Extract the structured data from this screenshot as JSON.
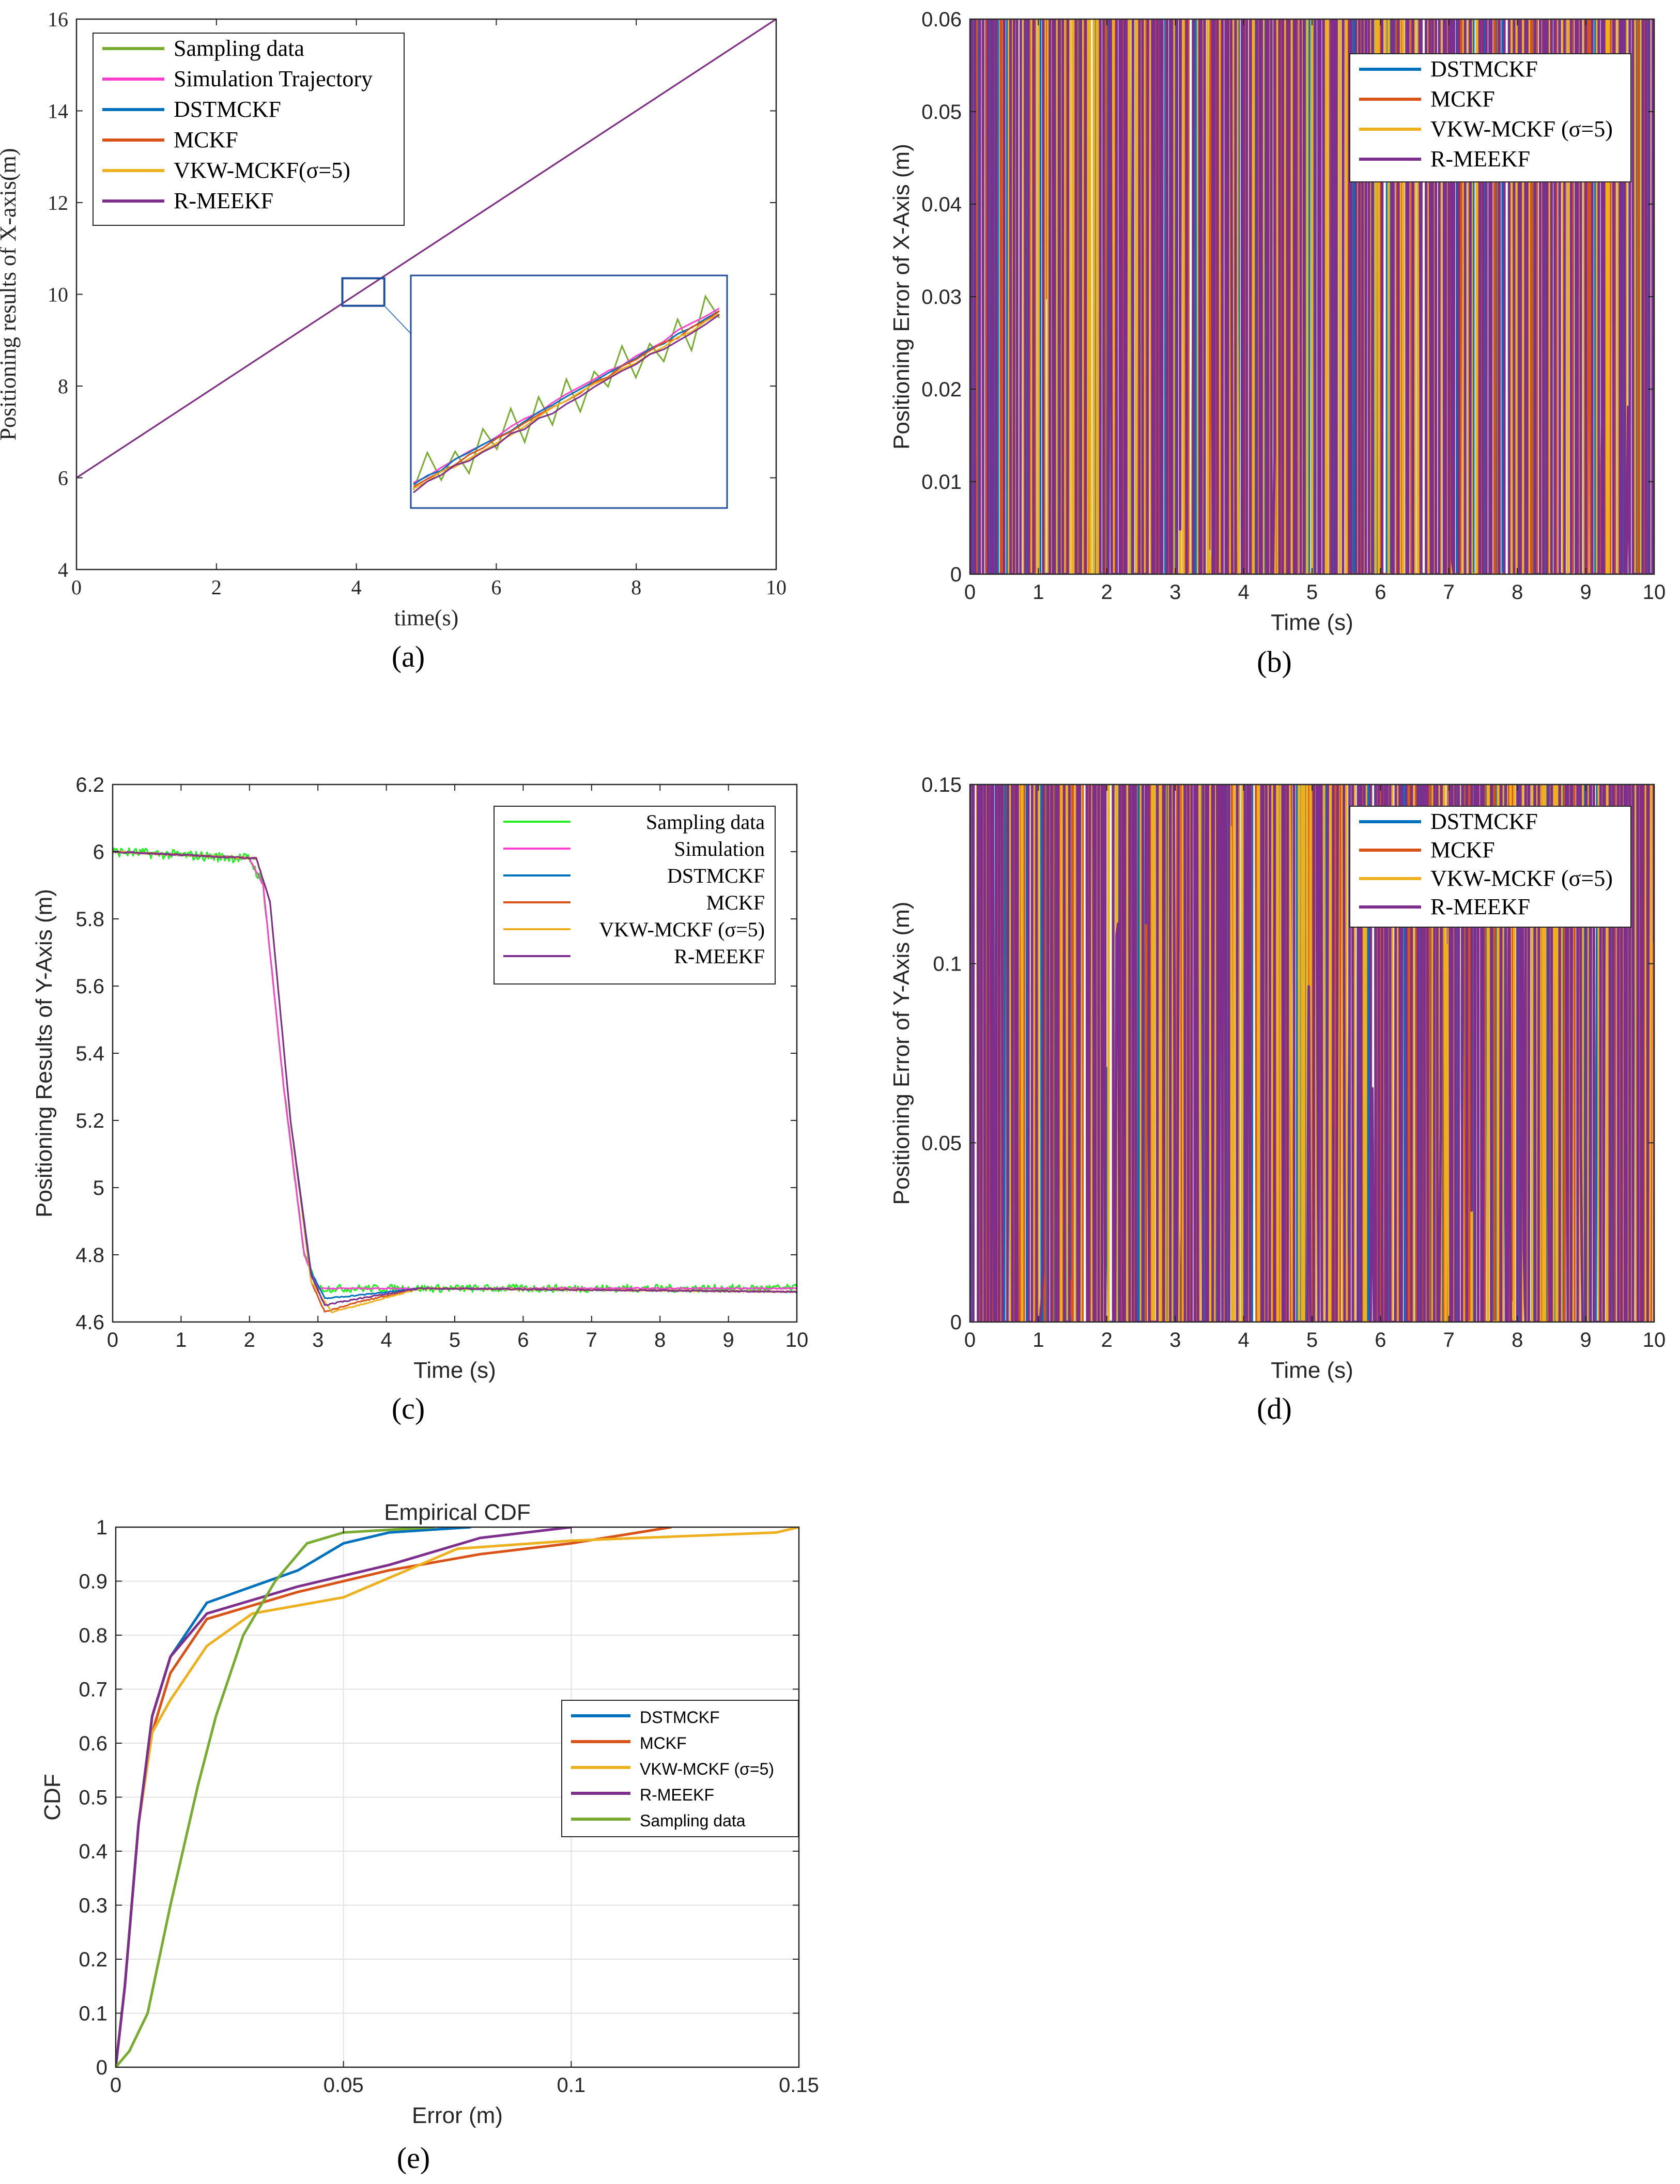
{
  "colors": {
    "blue": "#0072BD",
    "orange": "#D95319",
    "yellow": "#EDB120",
    "purple": "#7E2F8E",
    "green": "#77AC30",
    "magenta": "#FF3FD0",
    "bright_green": "#22EE22",
    "plain_green": "#77AC30"
  },
  "chart_data": [
    {
      "id": "a",
      "type": "line",
      "caption": "(a)",
      "title": "",
      "xlabel": "time(s)",
      "ylabel": "Positioning results of X-axis(m)",
      "xlim": [
        0,
        10
      ],
      "ylim": [
        4,
        16
      ],
      "xticks": [
        "0",
        "2",
        "4",
        "6",
        "8",
        "10"
      ],
      "yticks": [
        "4",
        "6",
        "8",
        "10",
        "12",
        "14",
        "16"
      ],
      "grid": false,
      "legend_position": "top-left",
      "series": [
        {
          "name": "Sampling data",
          "color": "#77AC30",
          "x": [
            0,
            10
          ],
          "y": [
            6.0,
            16.0
          ]
        },
        {
          "name": "Simulation Trajectory",
          "color": "#FF3FD0",
          "x": [
            0,
            10
          ],
          "y": [
            6.0,
            16.0
          ]
        },
        {
          "name": "DSTMCKF",
          "color": "#0072BD",
          "x": [
            0,
            10
          ],
          "y": [
            6.0,
            16.0
          ]
        },
        {
          "name": "MCKF",
          "color": "#D95319",
          "x": [
            0,
            10
          ],
          "y": [
            6.0,
            16.0
          ]
        },
        {
          "name": "VKW-MCKF(σ=5)",
          "color": "#EDB120",
          "x": [
            0,
            10
          ],
          "y": [
            6.0,
            16.0
          ]
        },
        {
          "name": "R-MEEKF",
          "color": "#7E2F8E",
          "x": [
            0,
            10
          ],
          "y": [
            6.0,
            16.0
          ]
        }
      ],
      "inset": {
        "x_range": [
          3.8,
          4.4
        ],
        "y_range": [
          9.75,
          10.35
        ]
      }
    },
    {
      "id": "b",
      "type": "line",
      "caption": "(b)",
      "title": "",
      "xlabel": "Time (s)",
      "ylabel": "Positioning Error of X-Axis (m)",
      "xlim": [
        0,
        10
      ],
      "ylim": [
        0,
        0.06
      ],
      "xticks": [
        "0",
        "1",
        "2",
        "3",
        "4",
        "5",
        "6",
        "7",
        "8",
        "9",
        "10"
      ],
      "yticks": [
        "0",
        "0.01",
        "0.02",
        "0.03",
        "0.04",
        "0.05",
        "0.06"
      ],
      "grid": false,
      "legend_position": "top-right",
      "series": [
        {
          "name": "DSTMCKF",
          "color": "#0072BD",
          "x": [
            0,
            0.3,
            0.6,
            1.0,
            2.0,
            2.2,
            2.5,
            2.8,
            3.0,
            4.0,
            6.0,
            8.0,
            10.0
          ],
          "y": [
            0.028,
            0.012,
            0.004,
            0.002,
            0.002,
            0.012,
            0.018,
            0.01,
            0.003,
            0.002,
            0.002,
            0.002,
            0.002
          ]
        },
        {
          "name": "MCKF",
          "color": "#D95319",
          "x": [
            0,
            0.1,
            0.4,
            0.8,
            1.5,
            2.0,
            3.0,
            4.0,
            6.0,
            8.0,
            10.0
          ],
          "y": [
            0.02,
            0.052,
            0.02,
            0.012,
            0.008,
            0.006,
            0.005,
            0.004,
            0.004,
            0.004,
            0.004
          ]
        },
        {
          "name": "VKW-MCKF (σ=5)",
          "color": "#EDB120",
          "x": [
            0,
            0.1,
            0.4,
            0.8,
            1.2,
            2.0,
            3.0,
            4.0,
            6.0,
            8.0,
            10.0
          ],
          "y": [
            0.03,
            0.05,
            0.03,
            0.025,
            0.012,
            0.006,
            0.004,
            0.004,
            0.004,
            0.004,
            0.004
          ]
        },
        {
          "name": "R-MEEKF",
          "color": "#7E2F8E",
          "x": [
            0,
            0.1,
            0.5,
            1.0,
            2.0,
            2.8,
            3.0,
            3.2,
            4.0,
            6.0,
            8.0,
            8.3,
            9.0,
            10.0
          ],
          "y": [
            0.02,
            0.04,
            0.015,
            0.008,
            0.005,
            0.02,
            0.026,
            0.008,
            0.006,
            0.006,
            0.008,
            0.017,
            0.006,
            0.005
          ]
        }
      ]
    },
    {
      "id": "c",
      "type": "line",
      "caption": "(c)",
      "title": "",
      "xlabel": "Time (s)",
      "ylabel": "Positioning Results of Y-Axis (m)",
      "xlim": [
        0,
        10
      ],
      "ylim": [
        4.6,
        6.2
      ],
      "xticks": [
        "0",
        "1",
        "2",
        "3",
        "4",
        "5",
        "6",
        "7",
        "8",
        "9",
        "10"
      ],
      "yticks": [
        "4.6",
        "4.8",
        "5",
        "5.2",
        "5.4",
        "5.6",
        "5.8",
        "6",
        "6.2"
      ],
      "grid": false,
      "legend_position": "top-right",
      "series": [
        {
          "name": "Sampling data",
          "color": "#22EE22",
          "x": [
            0,
            2.0,
            2.2,
            2.5,
            2.8,
            3.0,
            10.0
          ],
          "y": [
            6.0,
            5.98,
            5.9,
            5.3,
            4.8,
            4.7,
            4.7
          ]
        },
        {
          "name": "Simulation",
          "color": "#FF3FD0",
          "x": [
            0,
            2.0,
            2.2,
            2.5,
            2.8,
            3.0,
            10.0
          ],
          "y": [
            6.0,
            5.98,
            5.9,
            5.3,
            4.8,
            4.7,
            4.7
          ]
        },
        {
          "name": "DSTMCKF",
          "color": "#0072BD",
          "x": [
            0,
            2.1,
            2.3,
            2.6,
            2.9,
            3.1,
            3.6,
            4.5,
            10.0
          ],
          "y": [
            6.0,
            5.98,
            5.85,
            5.2,
            4.75,
            4.67,
            4.68,
            4.7,
            4.69
          ]
        },
        {
          "name": "MCKF",
          "color": "#D95319",
          "x": [
            0,
            2.1,
            2.3,
            2.6,
            2.9,
            3.1,
            3.6,
            4.5,
            10.0
          ],
          "y": [
            6.0,
            5.98,
            5.85,
            5.2,
            4.72,
            4.63,
            4.66,
            4.7,
            4.69
          ]
        },
        {
          "name": "VKW-MCKF (σ=5)",
          "color": "#EDB120",
          "x": [
            0,
            2.1,
            2.3,
            2.6,
            2.9,
            3.2,
            3.6,
            4.5,
            10.0
          ],
          "y": [
            6.0,
            5.98,
            5.85,
            5.2,
            4.72,
            4.63,
            4.65,
            4.7,
            4.69
          ]
        },
        {
          "name": "R-MEEKF",
          "color": "#7E2F8E",
          "x": [
            0,
            2.1,
            2.3,
            2.6,
            2.9,
            3.1,
            3.6,
            4.5,
            10.0
          ],
          "y": [
            6.0,
            5.98,
            5.85,
            5.2,
            4.74,
            4.65,
            4.67,
            4.7,
            4.69
          ]
        }
      ]
    },
    {
      "id": "d",
      "type": "line",
      "caption": "(d)",
      "title": "",
      "xlabel": "Time (s)",
      "ylabel": "Positioning Error of Y-Axis (m)",
      "xlim": [
        0,
        10
      ],
      "ylim": [
        0,
        0.15
      ],
      "xticks": [
        "0",
        "1",
        "2",
        "3",
        "4",
        "5",
        "6",
        "7",
        "8",
        "9",
        "10"
      ],
      "yticks": [
        "0",
        "0.05",
        "0.1",
        "0.15"
      ],
      "grid": false,
      "legend_position": "top-right",
      "series": [
        {
          "name": "DSTMCKF",
          "color": "#0072BD",
          "x": [
            0,
            0.5,
            1.0,
            2.0,
            2.3,
            2.5,
            2.7,
            3.0,
            3.3,
            3.7,
            4.2,
            4.5,
            5.0,
            6.0,
            8.0,
            10.0
          ],
          "y": [
            0.02,
            0.01,
            0.004,
            0.002,
            0.06,
            0.075,
            0.02,
            0.003,
            0.05,
            0.03,
            0.022,
            0.008,
            0.012,
            0.004,
            0.004,
            0.004
          ]
        },
        {
          "name": "MCKF",
          "color": "#D95319",
          "x": [
            0,
            0.2,
            1.0,
            2.0,
            2.2,
            2.5,
            2.8,
            3.0,
            3.2,
            3.6,
            4.0,
            4.5,
            5.0,
            6.0,
            8.0,
            10.0
          ],
          "y": [
            0.005,
            0.027,
            0.005,
            0.002,
            0.04,
            0.122,
            0.04,
            0.04,
            0.07,
            0.035,
            0.01,
            0.005,
            0.005,
            0.004,
            0.004,
            0.004
          ]
        },
        {
          "name": "VKW-MCKF (σ=5)",
          "color": "#EDB120",
          "x": [
            0,
            0.5,
            1.0,
            2.0,
            2.2,
            2.5,
            2.8,
            3.0,
            3.2,
            3.6,
            4.0,
            4.3,
            4.5,
            5.0,
            6.0,
            8.0,
            10.0
          ],
          "y": [
            0.004,
            0.01,
            0.006,
            0.003,
            0.05,
            0.147,
            0.06,
            0.05,
            0.077,
            0.05,
            0.03,
            0.018,
            0.008,
            0.006,
            0.004,
            0.004,
            0.004
          ]
        },
        {
          "name": "R-MEEKF",
          "color": "#7E2F8E",
          "x": [
            0,
            0.5,
            1.0,
            2.0,
            2.2,
            2.5,
            2.8,
            3.0,
            3.2,
            3.6,
            3.8,
            4.5,
            5.0,
            6.0,
            8.0,
            10.0
          ],
          "y": [
            0.038,
            0.006,
            0.005,
            0.002,
            0.03,
            0.098,
            0.02,
            0.04,
            0.068,
            0.03,
            0.005,
            0.007,
            0.006,
            0.007,
            0.007,
            0.006
          ]
        }
      ]
    },
    {
      "id": "e",
      "type": "line",
      "caption": "(e)",
      "title": "Empirical CDF",
      "xlabel": "Error (m)",
      "ylabel": "CDF",
      "xlim": [
        0,
        0.15
      ],
      "ylim": [
        0,
        1
      ],
      "xticks": [
        "0",
        "0.05",
        "0.1",
        "0.15"
      ],
      "yticks": [
        "0",
        "0.1",
        "0.2",
        "0.3",
        "0.4",
        "0.5",
        "0.6",
        "0.7",
        "0.8",
        "0.9",
        "1"
      ],
      "grid": true,
      "legend_position": "center-right",
      "series": [
        {
          "name": "DSTMCKF",
          "color": "#0072BD",
          "x": [
            0,
            0.002,
            0.005,
            0.008,
            0.012,
            0.02,
            0.03,
            0.04,
            0.05,
            0.06,
            0.078
          ],
          "y": [
            0,
            0.15,
            0.45,
            0.65,
            0.76,
            0.86,
            0.89,
            0.92,
            0.97,
            0.99,
            1.0
          ]
        },
        {
          "name": "MCKF",
          "color": "#D95319",
          "x": [
            0,
            0.002,
            0.005,
            0.008,
            0.012,
            0.02,
            0.04,
            0.06,
            0.08,
            0.1,
            0.122
          ],
          "y": [
            0,
            0.15,
            0.45,
            0.62,
            0.73,
            0.83,
            0.88,
            0.92,
            0.95,
            0.97,
            1.0
          ]
        },
        {
          "name": "VKW-MCKF (σ=5)",
          "color": "#EDB120",
          "x": [
            0,
            0.002,
            0.005,
            0.008,
            0.012,
            0.02,
            0.03,
            0.05,
            0.075,
            0.1,
            0.145,
            0.15
          ],
          "y": [
            0,
            0.15,
            0.45,
            0.62,
            0.68,
            0.78,
            0.84,
            0.87,
            0.96,
            0.975,
            0.99,
            1.0
          ]
        },
        {
          "name": "R-MEEKF",
          "color": "#7E2F8E",
          "x": [
            0,
            0.002,
            0.005,
            0.008,
            0.012,
            0.02,
            0.04,
            0.06,
            0.08,
            0.1
          ],
          "y": [
            0,
            0.15,
            0.45,
            0.65,
            0.76,
            0.84,
            0.89,
            0.93,
            0.98,
            1.0
          ]
        },
        {
          "name": "Sampling data",
          "color": "#77AC30",
          "x": [
            0,
            0.003,
            0.007,
            0.012,
            0.018,
            0.022,
            0.028,
            0.035,
            0.042,
            0.05,
            0.07
          ],
          "y": [
            0,
            0.03,
            0.1,
            0.3,
            0.52,
            0.65,
            0.8,
            0.9,
            0.97,
            0.99,
            1.0
          ]
        }
      ]
    }
  ]
}
